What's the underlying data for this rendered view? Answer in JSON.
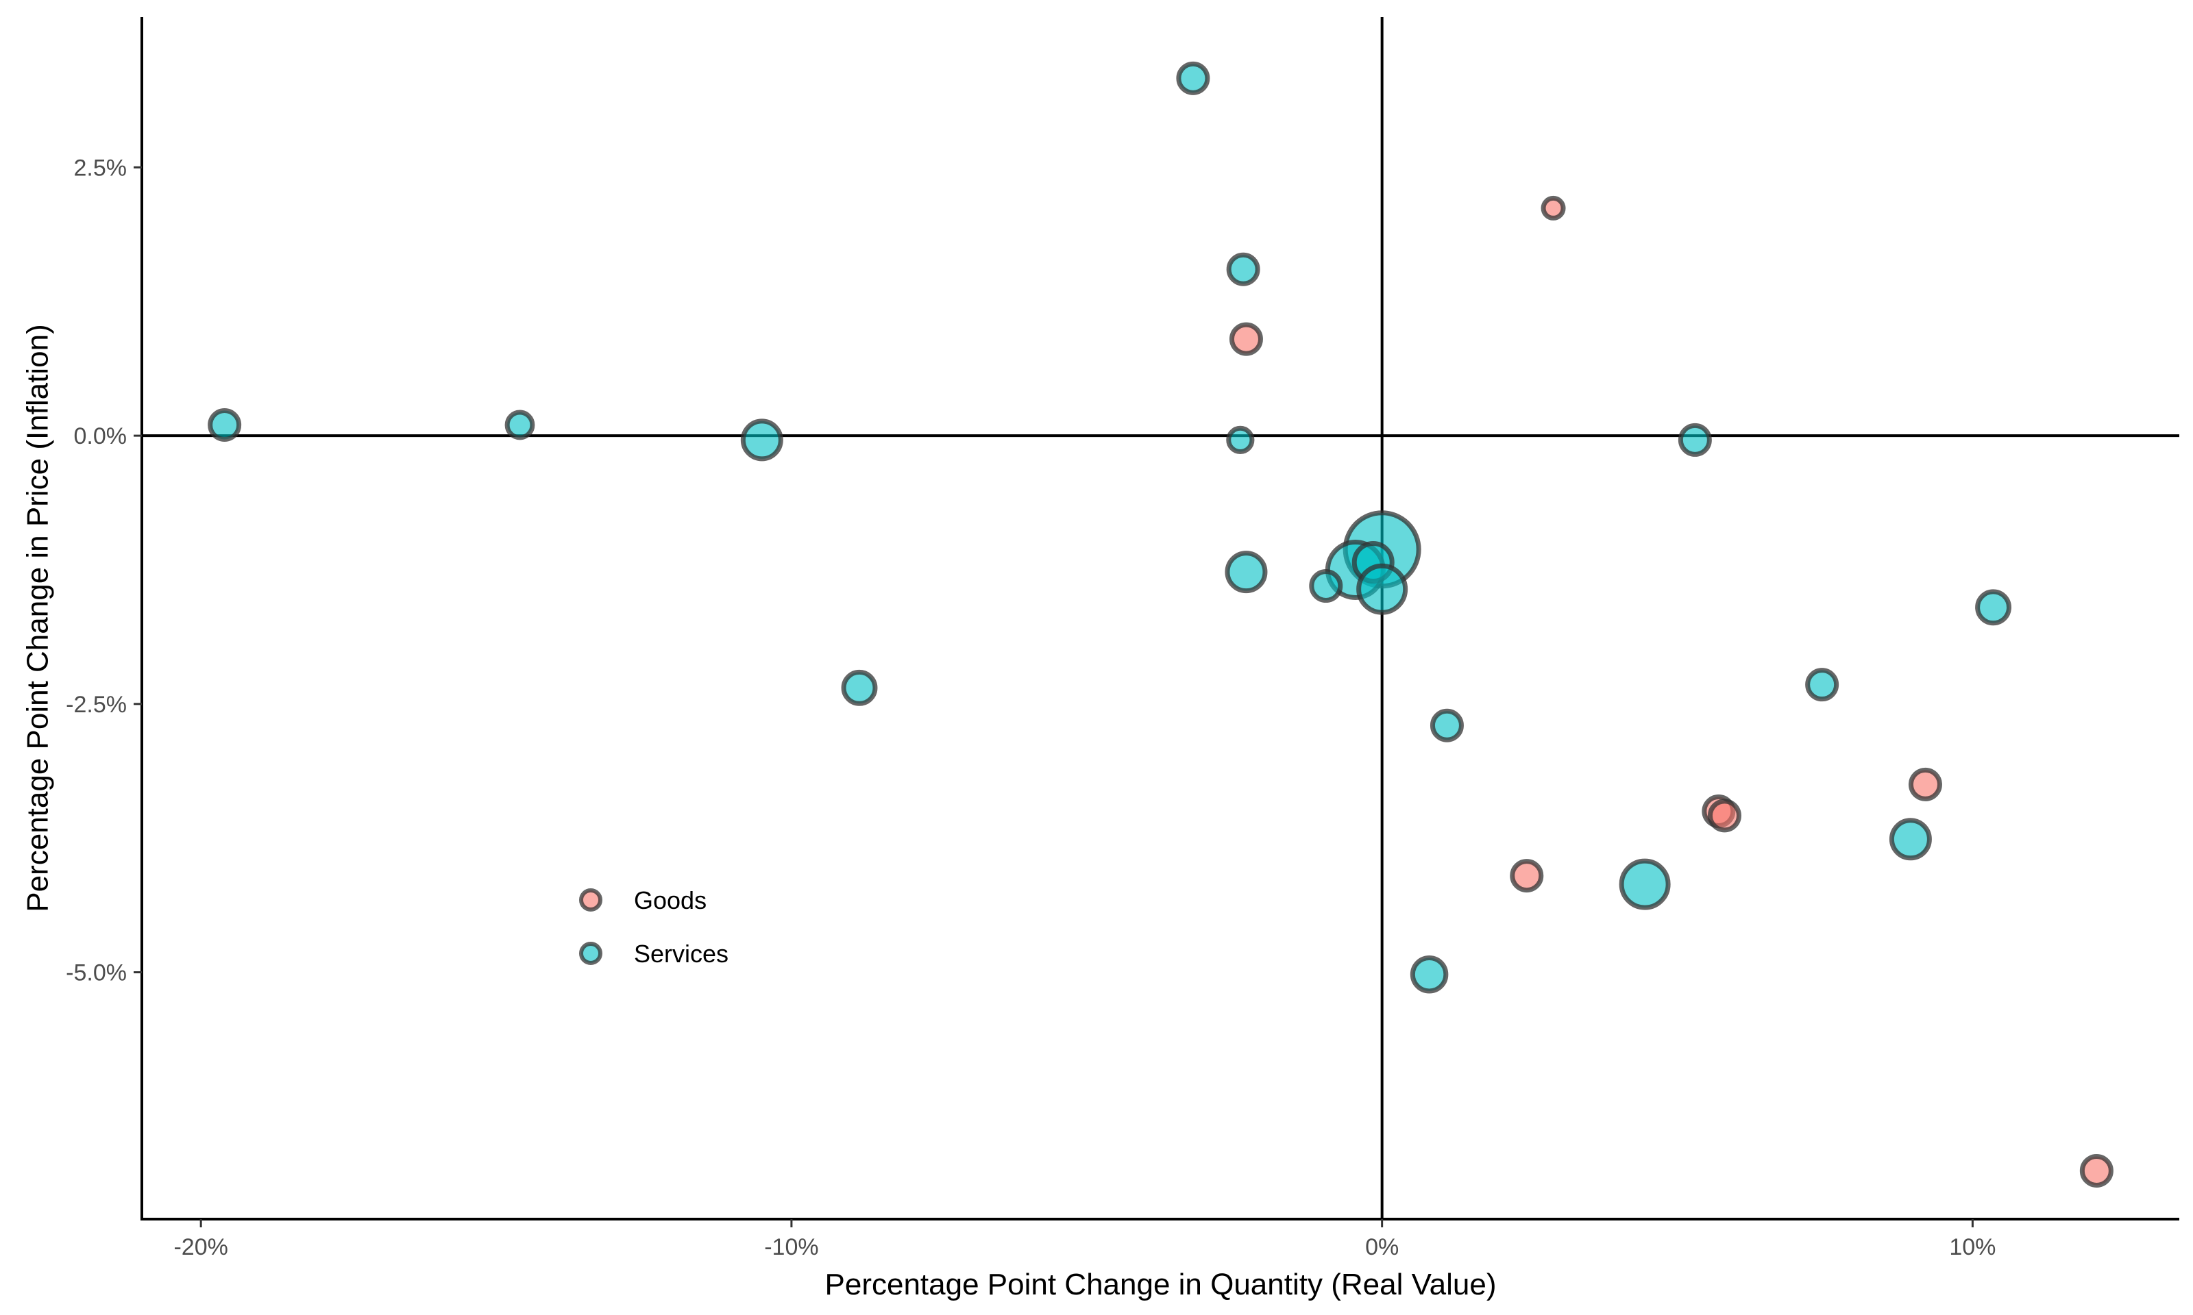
{
  "chart_data": {
    "type": "scatter",
    "xlabel": "Percentage Point Change in Quantity (Real Value)",
    "ylabel": "Percentage Point Change in Price (Inflation)",
    "xlim": [
      -21,
      13.5
    ],
    "ylim": [
      -7.3,
      3.9
    ],
    "x_ticks": [
      -20,
      -10,
      0,
      10
    ],
    "x_tick_labels": [
      "-20%",
      "-10%",
      "0%",
      "10%"
    ],
    "y_ticks": [
      2.5,
      0,
      -2.5,
      -5
    ],
    "y_tick_labels": [
      "2.5%",
      "0.0%",
      "-2.5%",
      "-5.0%"
    ],
    "reference_lines": {
      "x": 0,
      "y": 0
    },
    "grid": false,
    "size_encoding": "point size varies by category weight (no size legend shown)",
    "legend": {
      "position": "inside-lower-left",
      "entries": [
        {
          "label": "Goods",
          "color": "#F8766D"
        },
        {
          "label": "Services",
          "color": "#00BFC4"
        }
      ]
    },
    "series": [
      {
        "name": "Goods",
        "color": "#F8766D",
        "points": [
          {
            "x": 2.9,
            "y": 2.12,
            "size": 1
          },
          {
            "x": -2.3,
            "y": 0.9,
            "size": 2
          },
          {
            "x": 5.7,
            "y": -3.5,
            "size": 2
          },
          {
            "x": 5.8,
            "y": -3.54,
            "size": 2
          },
          {
            "x": 9.2,
            "y": -3.25,
            "size": 2
          },
          {
            "x": 2.45,
            "y": -4.1,
            "size": 2
          },
          {
            "x": 12.1,
            "y": -6.85,
            "size": 2
          }
        ]
      },
      {
        "name": "Services",
        "color": "#00BFC4",
        "points": [
          {
            "x": -3.2,
            "y": 3.33,
            "size": 2
          },
          {
            "x": -2.35,
            "y": 1.55,
            "size": 2
          },
          {
            "x": -19.6,
            "y": 0.1,
            "size": 2
          },
          {
            "x": -14.6,
            "y": 0.1,
            "size": 1.6
          },
          {
            "x": -10.5,
            "y": -0.04,
            "size": 3
          },
          {
            "x": -2.4,
            "y": -0.04,
            "size": 1.4
          },
          {
            "x": 5.3,
            "y": -0.04,
            "size": 2
          },
          {
            "x": 0.0,
            "y": -1.06,
            "size": 7
          },
          {
            "x": -0.45,
            "y": -1.25,
            "size": 5
          },
          {
            "x": -0.15,
            "y": -1.18,
            "size": 3
          },
          {
            "x": 0.0,
            "y": -1.43,
            "size": 4
          },
          {
            "x": -2.3,
            "y": -1.27,
            "size": 3
          },
          {
            "x": -0.95,
            "y": -1.4,
            "size": 2
          },
          {
            "x": 10.35,
            "y": -1.6,
            "size": 2.3
          },
          {
            "x": 7.45,
            "y": -2.32,
            "size": 2
          },
          {
            "x": -8.85,
            "y": -2.35,
            "size": 2.3
          },
          {
            "x": 1.1,
            "y": -2.7,
            "size": 2
          },
          {
            "x": 8.95,
            "y": -3.76,
            "size": 3
          },
          {
            "x": 4.45,
            "y": -4.18,
            "size": 4
          },
          {
            "x": 0.8,
            "y": -5.02,
            "size": 2.5
          }
        ]
      }
    ]
  }
}
